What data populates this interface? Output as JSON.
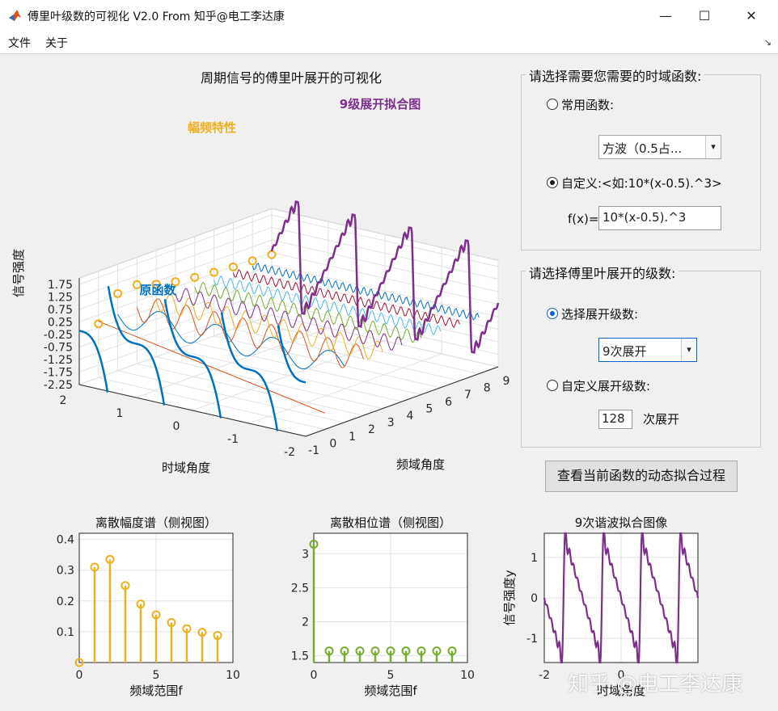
{
  "window": {
    "title": "傅里叶级数的可视化 V2.0 From 知乎@电工李达康",
    "minimize": "—",
    "maximize": "☐",
    "close": "✕"
  },
  "menu": {
    "file": "文件",
    "about": "关于",
    "toolbar_arrow": "↘"
  },
  "plot3d": {
    "title": "周期信号的傅里叶展开的可视化",
    "zlabel": "信号强度",
    "xlabel": "时域角度",
    "ylabel": "频域角度",
    "label_amp": "幅频特性",
    "label_orig": "原函数",
    "label_fit": "9级展开拟合图",
    "z_ticks": [
      "1.75",
      "1.25",
      "0.75",
      "0.25",
      "-0.25",
      "-0.75",
      "-1.25",
      "-1.75",
      "-2.25"
    ],
    "t_ticks": [
      "2",
      "1",
      "0",
      "-1",
      "-2"
    ],
    "f_ticks": [
      "-1",
      "0",
      "1",
      "2",
      "3",
      "4",
      "5",
      "6",
      "7",
      "8",
      "9"
    ]
  },
  "func_panel": {
    "title": "请选择需要您需要的时域函数:",
    "common_label": "常用函数:",
    "common_selected": "方波（0.5占...",
    "custom_label": "自定义:<如:10*(x-0.5).^3>",
    "fx_label": "f(x)=",
    "fx_value": "10*(x-0.5).^3"
  },
  "order_panel": {
    "title": "请选择傅里叶展开的级数:",
    "select_label": "选择展开级数:",
    "select_value": "9次展开",
    "custom_label": "自定义展开级数:",
    "custom_value": "128",
    "custom_suffix": "次展开"
  },
  "dynamic_button": "查看当前函数的动态拟合过程",
  "colors": {
    "amp": "#EDB120",
    "phase": "#77AC30",
    "fit": "#7E2F8E",
    "orig": "#0072BD",
    "accent": "#0a64c8"
  },
  "chart_data": [
    {
      "type": "stem",
      "title": "离散幅度谱（侧视图）",
      "xlabel": "频域范围f",
      "ylabel": "",
      "x": [
        0,
        1,
        2,
        3,
        4,
        5,
        6,
        7,
        8,
        9
      ],
      "values": [
        0.0,
        0.31,
        0.335,
        0.25,
        0.19,
        0.155,
        0.13,
        0.11,
        0.098,
        0.088
      ],
      "xlim": [
        0,
        10
      ],
      "ylim": [
        0,
        0.42
      ],
      "xticks": [
        "0",
        "5",
        "10"
      ],
      "yticks": [
        "0.1",
        "0.2",
        "0.3",
        "0.4"
      ],
      "grid": true
    },
    {
      "type": "stem",
      "title": "离散相位谱（侧视图）",
      "xlabel": "频域范围f",
      "ylabel": "",
      "x": [
        0,
        1,
        2,
        3,
        4,
        5,
        6,
        7,
        8,
        9
      ],
      "values": [
        3.14,
        1.57,
        1.57,
        1.57,
        1.57,
        1.57,
        1.57,
        1.57,
        1.57,
        1.57
      ],
      "xlim": [
        0,
        10
      ],
      "ylim": [
        1.4,
        3.3
      ],
      "xticks": [
        "0",
        "5",
        "10"
      ],
      "yticks": [
        "1.5",
        "2",
        "2.5",
        "3"
      ],
      "grid": true
    },
    {
      "type": "line",
      "title": "9次谐波拟合图像",
      "xlabel": "时域角度",
      "ylabel": "信号强度y",
      "xlim": [
        -2,
        2
      ],
      "ylim": [
        -1.6,
        1.6
      ],
      "xticks": [
        "-2",
        "0"
      ],
      "yticks": [
        "1",
        "0",
        "-1"
      ],
      "harmonics": 9,
      "grid": true
    }
  ],
  "watermark": "知乎 @电工李达康"
}
